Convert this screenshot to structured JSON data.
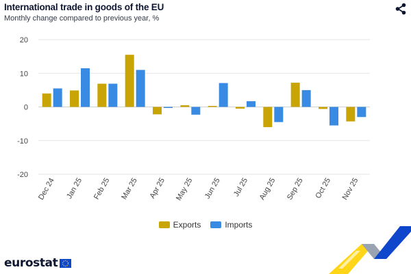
{
  "header": {
    "title": "International trade in goods of the EU",
    "subtitle": "Monthly change compared to previous year, %"
  },
  "icons": {
    "share": "share-icon"
  },
  "colors": {
    "exports": "#c9a405",
    "imports": "#388ae2",
    "grid": "#e6e6e6"
  },
  "logo": {
    "text": "eurostat"
  },
  "chart_data": {
    "type": "bar",
    "title": "International trade in goods of the EU",
    "subtitle": "Monthly change compared to previous year, %",
    "xlabel": "",
    "ylabel": "",
    "ylim": [
      -20,
      20
    ],
    "yticks": [
      20,
      10,
      0,
      -10,
      -20
    ],
    "grid": true,
    "legend": "bottom-center",
    "categories": [
      "Dec 24",
      "Jan 25",
      "Feb 25",
      "Mar 25",
      "Apr 25",
      "May 25",
      "Jun 25",
      "Jul 25",
      "Aug 25",
      "Sep 25",
      "Oct 25",
      "Nov 25"
    ],
    "series": [
      {
        "name": "Exports",
        "color": "#c9a405",
        "values": [
          4.0,
          4.9,
          6.9,
          15.5,
          -2.2,
          0.5,
          0.3,
          -0.5,
          -6.0,
          7.2,
          -0.6,
          -4.3
        ]
      },
      {
        "name": "Imports",
        "color": "#388ae2",
        "values": [
          5.5,
          11.5,
          6.9,
          11.0,
          -0.3,
          -2.3,
          7.1,
          1.7,
          -4.5,
          5.0,
          -5.5,
          -3.0
        ]
      }
    ]
  }
}
